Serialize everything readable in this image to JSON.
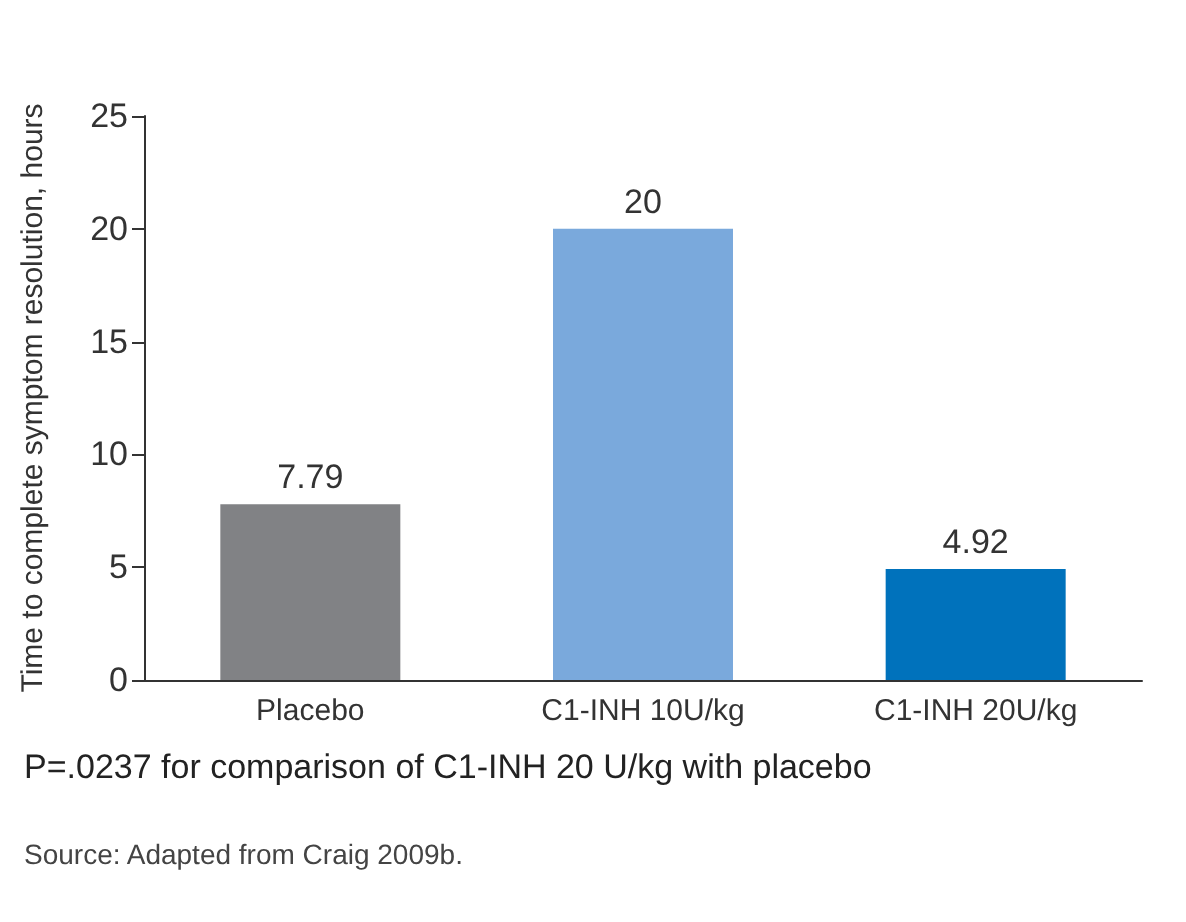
{
  "chart_data": {
    "type": "bar",
    "ylabel": "Time to complete symptom resolution, hours",
    "categories": [
      "Placebo",
      "C1-INH 10U/kg",
      "C1-INH 20U/kg"
    ],
    "values": [
      7.79,
      20,
      4.92
    ],
    "colors": [
      "#818285",
      "#7aa9dc",
      "#0072bc"
    ],
    "ylim": [
      0,
      25
    ],
    "yticks": [
      0,
      5,
      10,
      15,
      20,
      25
    ],
    "grid": false,
    "data_labels": true,
    "annotations": [
      "P=.0237 for comparison of C1-INH 20 U/kg with placebo",
      "Source: Adapted from Craig 2009b."
    ]
  }
}
